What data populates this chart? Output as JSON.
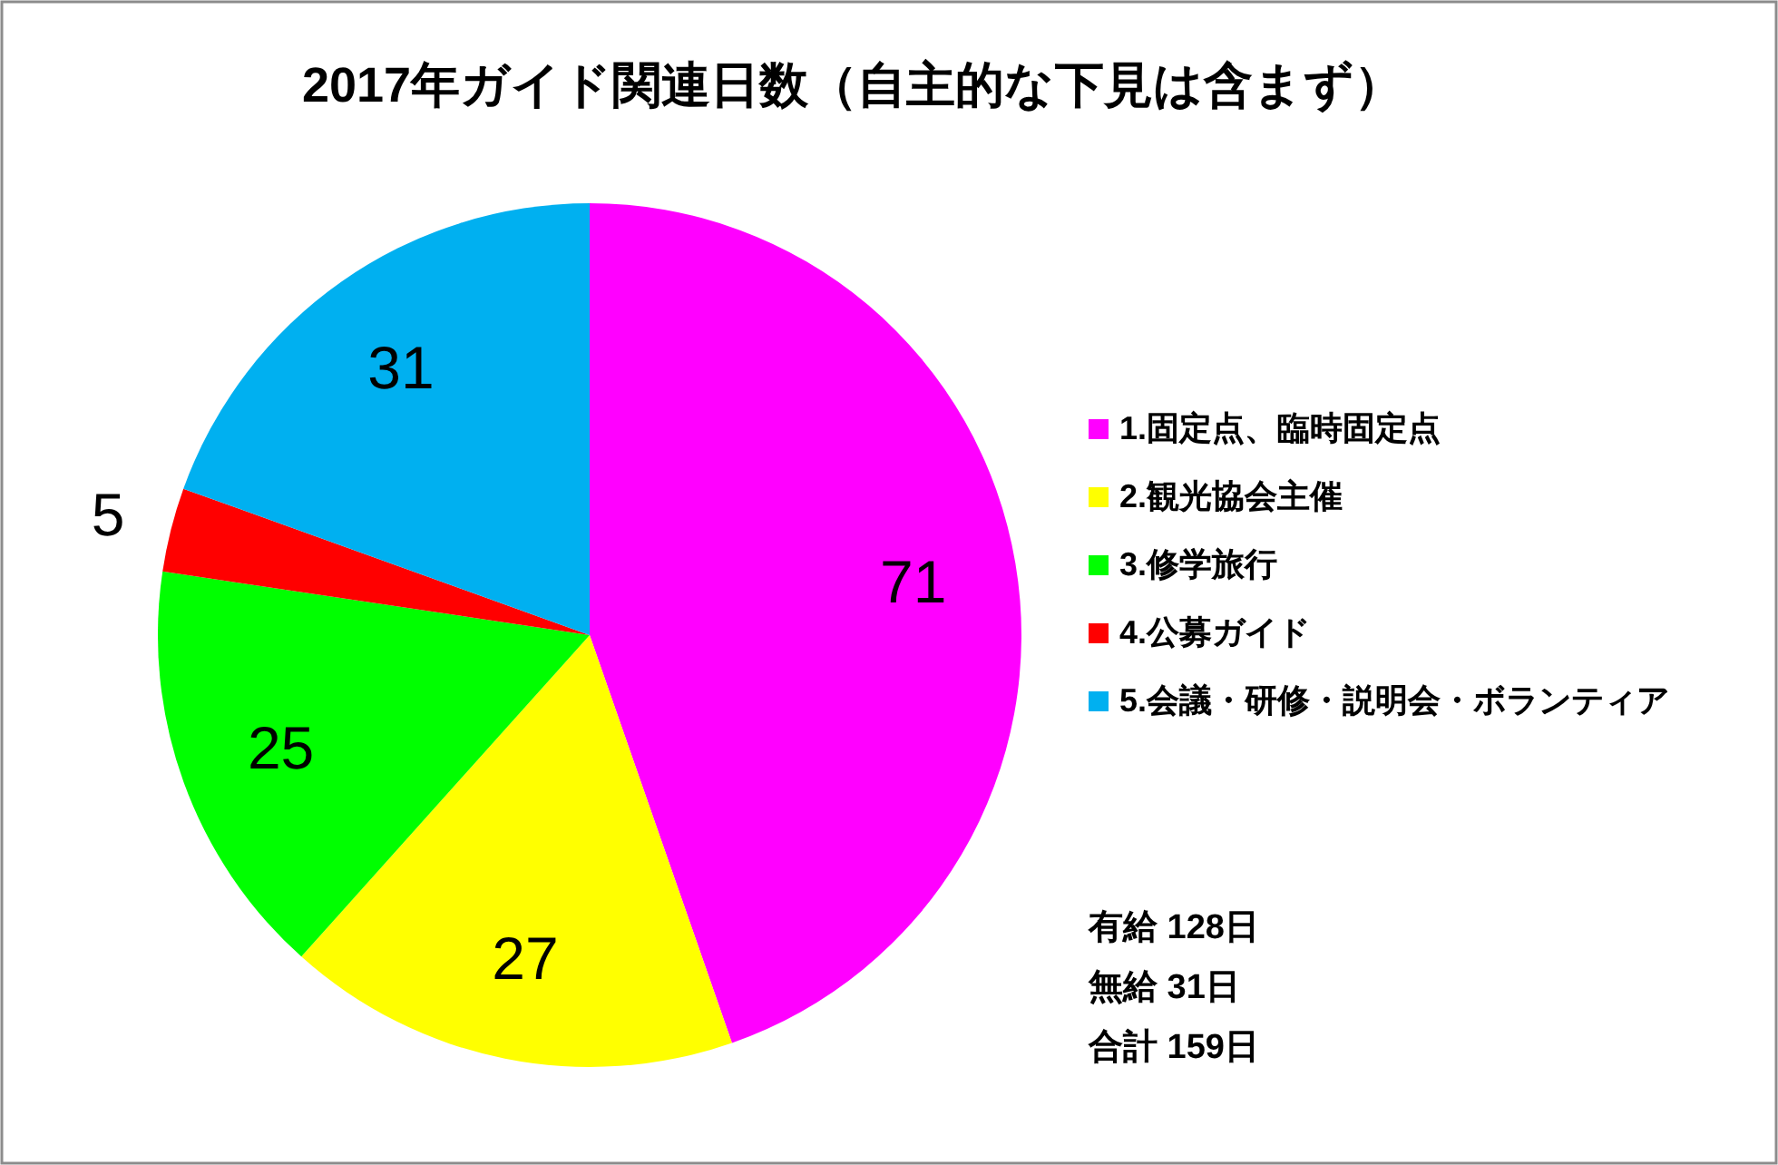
{
  "chart_data": {
    "type": "pie",
    "title": "2017年ガイド関連日数（自主的な下見は含まず）",
    "categories": [
      "1.固定点、臨時固定点",
      "2.観光協会主催",
      "3.修学旅行",
      "4.公募ガイド",
      "5.会議・研修・説明会・ボランティア"
    ],
    "values": [
      71,
      27,
      25,
      5,
      31
    ],
    "colors": [
      "#ff00ff",
      "#ffff00",
      "#00ff00",
      "#ff0000",
      "#00b0f0"
    ],
    "data_labels": true,
    "legend": "right",
    "annotations": [
      "有給 128日",
      "無給 31日",
      "合計 159日"
    ]
  }
}
